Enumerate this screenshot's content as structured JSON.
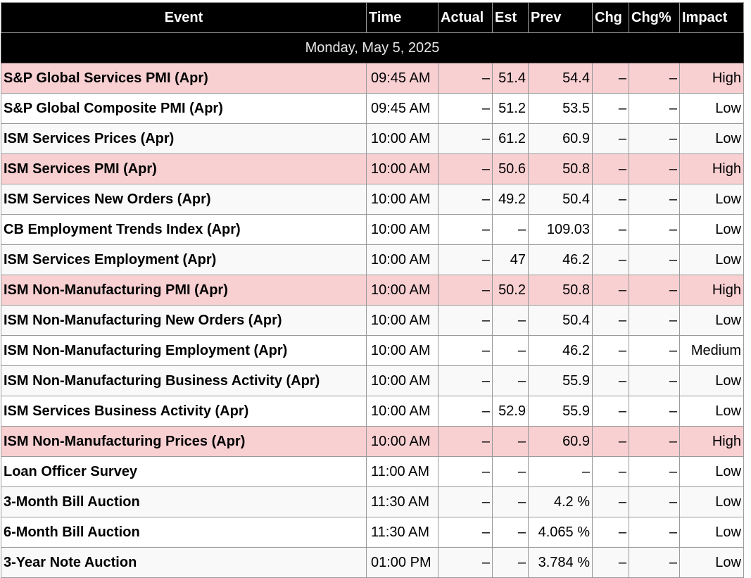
{
  "columns": [
    "Event",
    "Time",
    "Actual",
    "Est",
    "Prev",
    "Chg",
    "Chg%",
    "Impact"
  ],
  "date_label": "Monday, May 5, 2025",
  "events": [
    {
      "event": "S&P Global Services PMI (Apr)",
      "time": "09:45 AM",
      "actual": "–",
      "est": "51.4",
      "prev": "54.4",
      "chg": "–",
      "chg_pct": "–",
      "impact": "High"
    },
    {
      "event": "S&P Global Composite PMI (Apr)",
      "time": "09:45 AM",
      "actual": "–",
      "est": "51.2",
      "prev": "53.5",
      "chg": "–",
      "chg_pct": "–",
      "impact": "Low"
    },
    {
      "event": "ISM Services Prices (Apr)",
      "time": "10:00 AM",
      "actual": "–",
      "est": "61.2",
      "prev": "60.9",
      "chg": "–",
      "chg_pct": "–",
      "impact": "Low"
    },
    {
      "event": "ISM Services PMI (Apr)",
      "time": "10:00 AM",
      "actual": "–",
      "est": "50.6",
      "prev": "50.8",
      "chg": "–",
      "chg_pct": "–",
      "impact": "High"
    },
    {
      "event": "ISM Services New Orders (Apr)",
      "time": "10:00 AM",
      "actual": "–",
      "est": "49.2",
      "prev": "50.4",
      "chg": "–",
      "chg_pct": "–",
      "impact": "Low"
    },
    {
      "event": "CB Employment Trends Index (Apr)",
      "time": "10:00 AM",
      "actual": "–",
      "est": "–",
      "prev": "109.03",
      "chg": "–",
      "chg_pct": "–",
      "impact": "Low"
    },
    {
      "event": "ISM Services Employment (Apr)",
      "time": "10:00 AM",
      "actual": "–",
      "est": "47",
      "prev": "46.2",
      "chg": "–",
      "chg_pct": "–",
      "impact": "Low"
    },
    {
      "event": "ISM Non-Manufacturing PMI (Apr)",
      "time": "10:00 AM",
      "actual": "–",
      "est": "50.2",
      "prev": "50.8",
      "chg": "–",
      "chg_pct": "–",
      "impact": "High"
    },
    {
      "event": "ISM Non-Manufacturing New Orders (Apr)",
      "time": "10:00 AM",
      "actual": "–",
      "est": "–",
      "prev": "50.4",
      "chg": "–",
      "chg_pct": "–",
      "impact": "Low"
    },
    {
      "event": "ISM Non-Manufacturing Employment (Apr)",
      "time": "10:00 AM",
      "actual": "–",
      "est": "–",
      "prev": "46.2",
      "chg": "–",
      "chg_pct": "–",
      "impact": "Medium"
    },
    {
      "event": "ISM Non-Manufacturing Business Activity (Apr)",
      "time": "10:00 AM",
      "actual": "–",
      "est": "–",
      "prev": "55.9",
      "chg": "–",
      "chg_pct": "–",
      "impact": "Low"
    },
    {
      "event": "ISM Services Business Activity (Apr)",
      "time": "10:00 AM",
      "actual": "–",
      "est": "52.9",
      "prev": "55.9",
      "chg": "–",
      "chg_pct": "–",
      "impact": "Low"
    },
    {
      "event": "ISM Non-Manufacturing Prices (Apr)",
      "time": "10:00 AM",
      "actual": "–",
      "est": "–",
      "prev": "60.9",
      "chg": "–",
      "chg_pct": "–",
      "impact": "High"
    },
    {
      "event": "Loan Officer Survey",
      "time": "11:00 AM",
      "actual": "–",
      "est": "–",
      "prev": "–",
      "chg": "–",
      "chg_pct": "–",
      "impact": "Low"
    },
    {
      "event": "3-Month Bill Auction",
      "time": "11:30 AM",
      "actual": "–",
      "est": "–",
      "prev": "4.2 %",
      "chg": "–",
      "chg_pct": "–",
      "impact": "Low"
    },
    {
      "event": "6-Month Bill Auction",
      "time": "11:30 AM",
      "actual": "–",
      "est": "–",
      "prev": "4.065 %",
      "chg": "–",
      "chg_pct": "–",
      "impact": "Low"
    },
    {
      "event": "3-Year Note Auction",
      "time": "01:00 PM",
      "actual": "–",
      "est": "–",
      "prev": "3.784 %",
      "chg": "–",
      "chg_pct": "–",
      "impact": "Low"
    }
  ],
  "colors": {
    "header_bg": "#000000",
    "header_text": "#ffffff",
    "high_impact_row": "#f8d0d2",
    "alt_row": "#f9f9f9",
    "border": "#9a9a9a"
  }
}
